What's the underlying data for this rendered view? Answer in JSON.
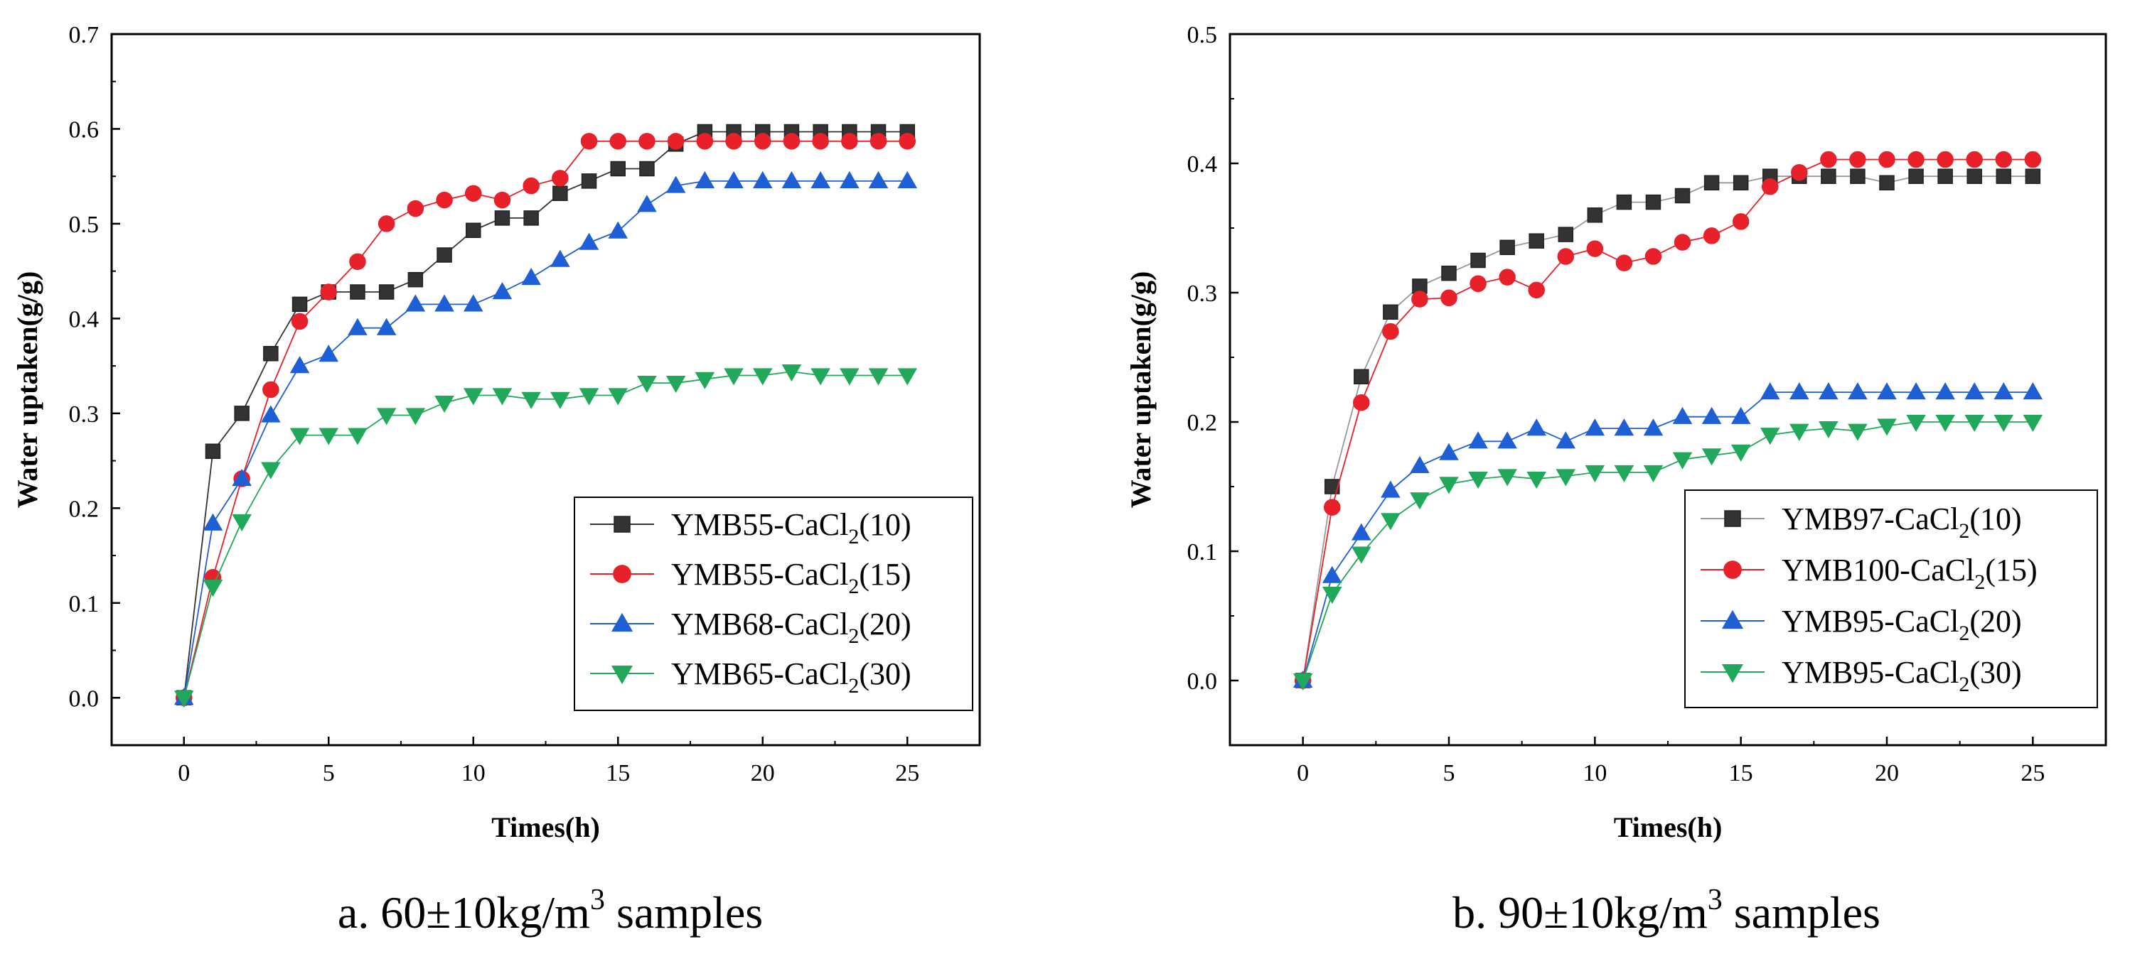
{
  "chart_data": [
    {
      "type": "line",
      "panel": "a",
      "caption": {
        "prefix": "a. 60±10kg/m",
        "sup": "3",
        "suffix": " samples"
      },
      "xlabel": "Times(h)",
      "ylabel": "Water uptaken(g/g)",
      "xlim": [
        -2.5,
        27.5
      ],
      "ylim": [
        -0.05,
        0.7
      ],
      "xticks": [
        0,
        5,
        10,
        15,
        20,
        25
      ],
      "yticks": [
        0.0,
        0.1,
        0.2,
        0.3,
        0.4,
        0.5,
        0.6,
        0.7
      ],
      "ytick_labels": [
        "0.0",
        "0.1",
        "0.2",
        "0.3",
        "0.4",
        "0.5",
        "0.6",
        "0.7"
      ],
      "legend_position": "bottom-right",
      "x": [
        0,
        1,
        2,
        3,
        4,
        5,
        6,
        7,
        8,
        9,
        10,
        11,
        12,
        13,
        14,
        15,
        16,
        17,
        18,
        19,
        20,
        21,
        22,
        23,
        24,
        25
      ],
      "series": [
        {
          "name": "YMB55-CaCl2(10)",
          "label_main": "YMB55-CaCl",
          "label_sub": "2",
          "label_suffix": "(10)",
          "marker": "square",
          "color": "#333333",
          "line_color": "#333333",
          "values": [
            0,
            0.26,
            0.3,
            0.363,
            0.415,
            0.428,
            0.428,
            0.428,
            0.441,
            0.467,
            0.493,
            0.506,
            0.506,
            0.532,
            0.545,
            0.558,
            0.558,
            0.584,
            0.597,
            0.597,
            0.597,
            0.597,
            0.597,
            0.597,
            0.597,
            0.597
          ]
        },
        {
          "name": "YMB55-CaCl2(15)",
          "label_main": "YMB55-CaCl",
          "label_sub": "2",
          "label_suffix": "(15)",
          "marker": "circle",
          "color": "#e8202a",
          "line_color": "#e8202a",
          "values": [
            0,
            0.127,
            0.231,
            0.325,
            0.397,
            0.428,
            0.46,
            0.5,
            0.516,
            0.525,
            0.532,
            0.525,
            0.54,
            0.548,
            0.587,
            0.587,
            0.587,
            0.587,
            0.587,
            0.587,
            0.587,
            0.587,
            0.587,
            0.587,
            0.587,
            0.587
          ]
        },
        {
          "name": "YMB68-CaCl2(20)",
          "label_main": "YMB68-CaCl",
          "label_sub": "2",
          "label_suffix": "(20)",
          "marker": "triangle-up",
          "color": "#1f5fd6",
          "line_color": "#1f5fd6",
          "values": [
            0,
            0.184,
            0.231,
            0.298,
            0.35,
            0.362,
            0.39,
            0.39,
            0.415,
            0.415,
            0.415,
            0.428,
            0.443,
            0.462,
            0.48,
            0.492,
            0.52,
            0.54,
            0.545,
            0.545,
            0.545,
            0.545,
            0.545,
            0.545,
            0.545,
            0.545
          ]
        },
        {
          "name": "YMB65-CaCl2(30)",
          "label_main": "YMB65-CaCl",
          "label_sub": "2",
          "label_suffix": "(30)",
          "marker": "triangle-down",
          "color": "#22a85a",
          "line_color": "#22a85a",
          "values": [
            0,
            0.117,
            0.186,
            0.241,
            0.277,
            0.277,
            0.277,
            0.298,
            0.298,
            0.311,
            0.319,
            0.319,
            0.315,
            0.315,
            0.319,
            0.319,
            0.332,
            0.332,
            0.336,
            0.34,
            0.34,
            0.344,
            0.34,
            0.34,
            0.34,
            0.34
          ]
        }
      ]
    },
    {
      "type": "line",
      "panel": "b",
      "caption": {
        "prefix": "b. 90±10kg/m",
        "sup": "3",
        "suffix": " samples"
      },
      "xlabel": "Times(h)",
      "ylabel": "Water uptaken(g/g)",
      "xlim": [
        -2.5,
        27.5
      ],
      "ylim": [
        -0.05,
        0.5
      ],
      "xticks": [
        0,
        5,
        10,
        15,
        20,
        25
      ],
      "yticks": [
        0.0,
        0.1,
        0.2,
        0.3,
        0.4,
        0.5
      ],
      "ytick_labels": [
        "0.0",
        "0.1",
        "0.2",
        "0.3",
        "0.4",
        "0.5"
      ],
      "legend_position": "bottom-right",
      "x": [
        0,
        1,
        2,
        3,
        4,
        5,
        6,
        7,
        8,
        9,
        10,
        11,
        12,
        13,
        14,
        15,
        16,
        17,
        18,
        19,
        20,
        21,
        22,
        23,
        24,
        25
      ],
      "series": [
        {
          "name": "YMB97-CaCl2(10)",
          "label_main": "YMB97-CaCl",
          "label_sub": "2",
          "label_suffix": "(10)",
          "marker": "square",
          "color": "#333333",
          "line_color": "#999999",
          "values": [
            0,
            0.15,
            0.235,
            0.285,
            0.305,
            0.315,
            0.325,
            0.335,
            0.34,
            0.345,
            0.36,
            0.37,
            0.37,
            0.375,
            0.385,
            0.385,
            0.39,
            0.39,
            0.39,
            0.39,
            0.385,
            0.39,
            0.39,
            0.39,
            0.39,
            0.39
          ]
        },
        {
          "name": "YMB100-CaCl2(15)",
          "label_main": "YMB100-CaCl",
          "label_sub": "2",
          "label_suffix": "(15)",
          "marker": "circle",
          "color": "#e8202a",
          "line_color": "#e8202a",
          "values": [
            0,
            0.134,
            0.215,
            0.27,
            0.295,
            0.296,
            0.307,
            0.312,
            0.302,
            0.328,
            0.334,
            0.323,
            0.328,
            0.339,
            0.344,
            0.355,
            0.382,
            0.393,
            0.403,
            0.403,
            0.403,
            0.403,
            0.403,
            0.403,
            0.403,
            0.403
          ]
        },
        {
          "name": "YMB95-CaCl2(20)",
          "label_main": "YMB95-CaCl",
          "label_sub": "2",
          "label_suffix": "(20)",
          "marker": "triangle-up",
          "color": "#1f5fd6",
          "line_color": "#1f5fd6",
          "values": [
            0,
            0.081,
            0.114,
            0.147,
            0.166,
            0.176,
            0.185,
            0.185,
            0.195,
            0.185,
            0.195,
            0.195,
            0.195,
            0.204,
            0.204,
            0.204,
            0.223,
            0.223,
            0.223,
            0.223,
            0.223,
            0.223,
            0.223,
            0.223,
            0.223,
            0.223
          ]
        },
        {
          "name": "YMB95-CaCl2(30)",
          "label_main": "YMB95-CaCl",
          "label_sub": "2",
          "label_suffix": "(30)",
          "marker": "triangle-down",
          "color": "#22a85a",
          "line_color": "#22a85a",
          "values": [
            0,
            0.067,
            0.098,
            0.124,
            0.14,
            0.152,
            0.156,
            0.158,
            0.156,
            0.158,
            0.161,
            0.161,
            0.161,
            0.171,
            0.174,
            0.177,
            0.19,
            0.193,
            0.195,
            0.193,
            0.197,
            0.2,
            0.2,
            0.2,
            0.2,
            0.2
          ]
        }
      ]
    }
  ]
}
